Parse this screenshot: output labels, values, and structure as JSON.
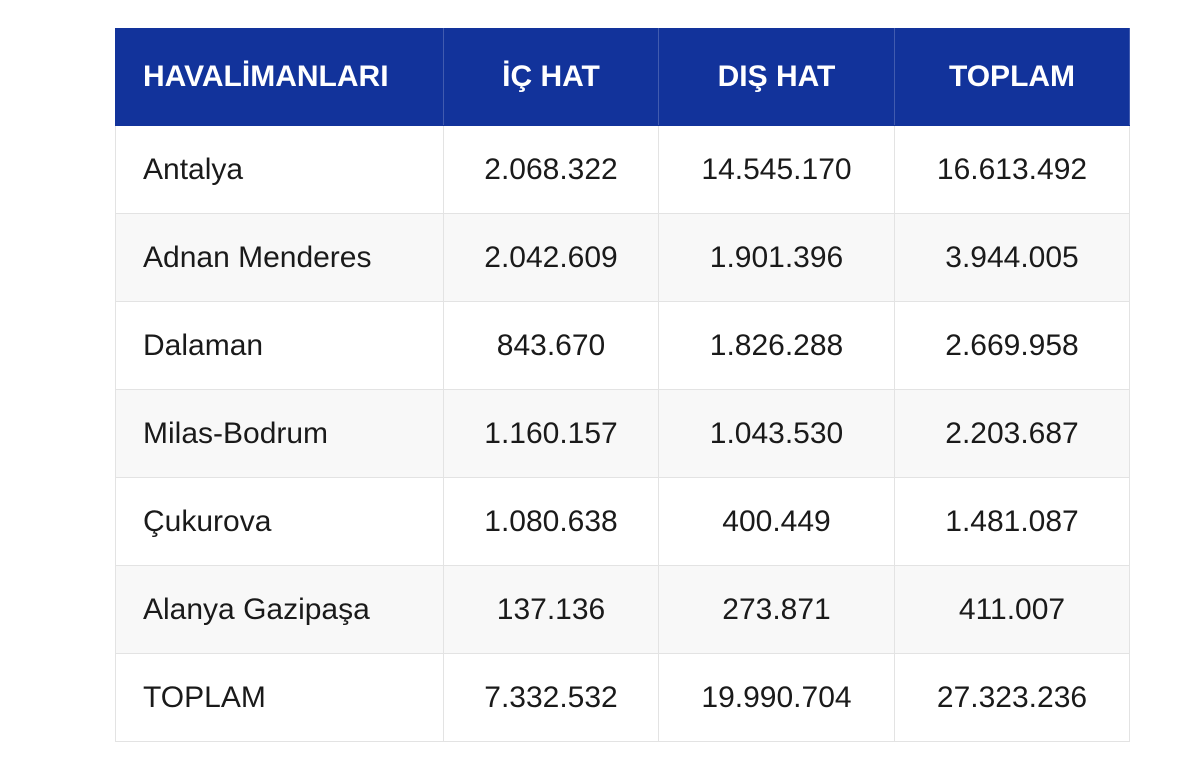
{
  "table": {
    "header": [
      "HAVALİMANLARI",
      "İÇ HAT",
      "DIŞ HAT",
      "TOPLAM"
    ],
    "rows": [
      [
        "Antalya",
        "2.068.322",
        "14.545.170",
        "16.613.492"
      ],
      [
        "Adnan Menderes",
        "2.042.609",
        "1.901.396",
        "3.944.005"
      ],
      [
        "Dalaman",
        "843.670",
        "1.826.288",
        "2.669.958"
      ],
      [
        "Milas-Bodrum",
        "1.160.157",
        "1.043.530",
        "2.203.687"
      ],
      [
        "Çukurova",
        "1.080.638",
        "400.449",
        "1.481.087"
      ],
      [
        "Alanya Gazipaşa",
        "137.136",
        "273.871",
        "411.007"
      ],
      [
        "TOPLAM",
        "7.332.532",
        "19.990.704",
        "27.323.236"
      ]
    ]
  }
}
